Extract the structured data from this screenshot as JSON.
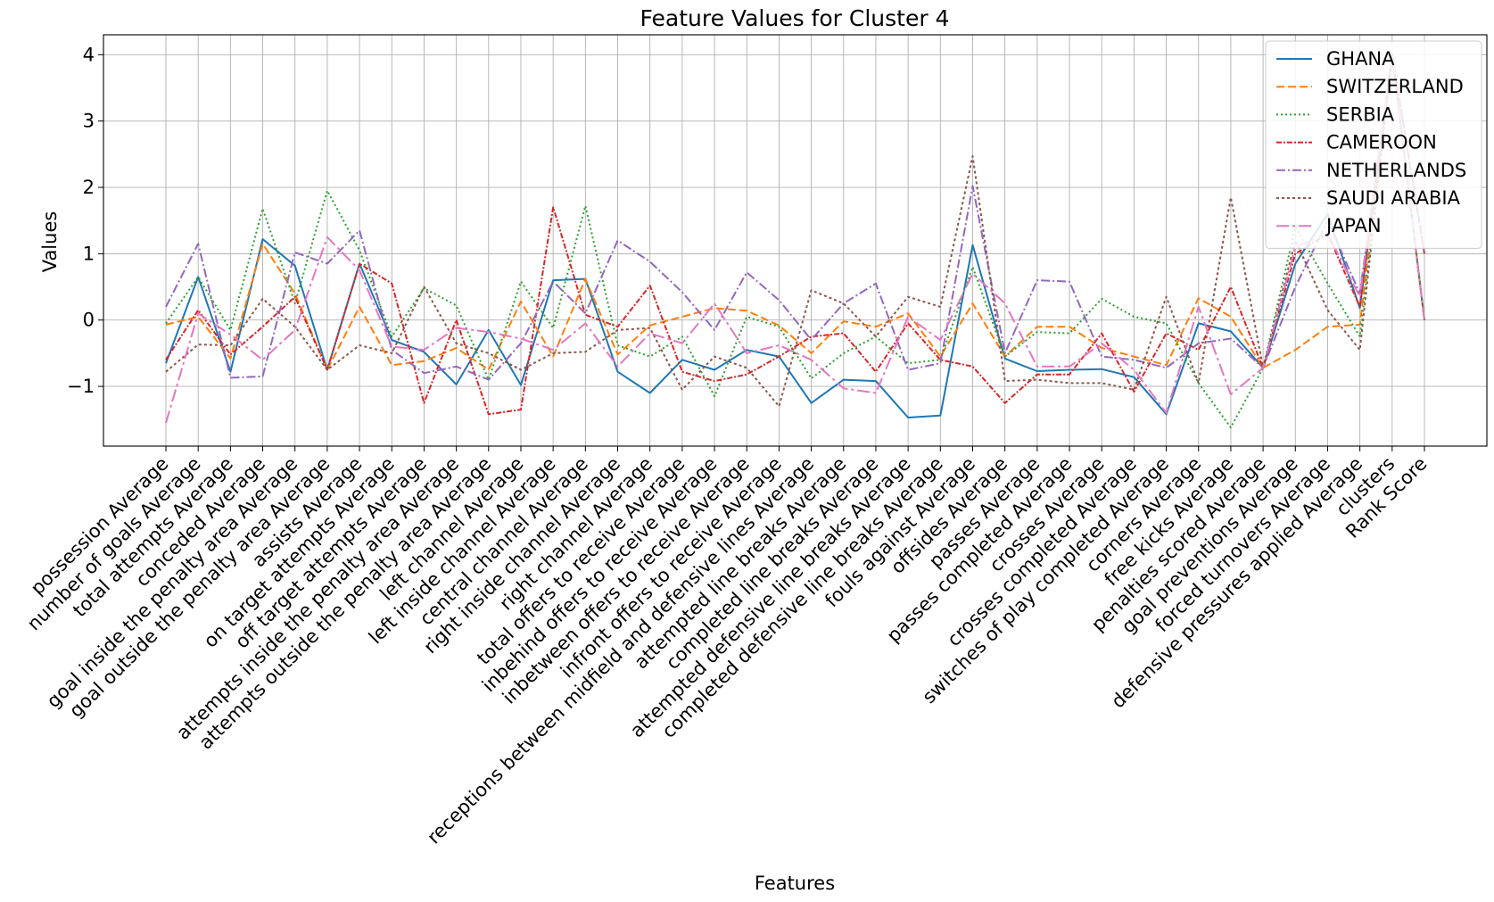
{
  "chart_data": {
    "type": "line",
    "title": "Feature Values for Cluster 4",
    "xlabel": "Features",
    "ylabel": "Values",
    "ylim": [
      -1.9,
      4.3
    ],
    "yticks": [
      -1,
      0,
      1,
      2,
      3,
      4
    ],
    "grid": true,
    "legend_position": "top-right",
    "categories": [
      "possession Average",
      "number of goals Average",
      "total attempts Average",
      "conceded Average",
      "goal inside the penalty area Average",
      "goal outside the penalty area Average",
      "assists Average",
      "on target attempts Average",
      "off target attempts Average",
      "attempts inside the penalty area  Average",
      "attempts outside the penalty area  Average",
      "left channel Average",
      "left inside channel Average",
      "central channel Average",
      "right inside channel Average",
      "right channel Average",
      "total offers to receive Average",
      "inbehind offers to receive Average",
      "inbetween offers to receive Average",
      "infront offers to receive Average",
      "receptions between midfield and defensive lines Average",
      "attempted line breaks Average",
      "completed line breaks Average",
      "attempted defensive line breaks Average",
      "completed defensive line breaks Average",
      "fouls against Average",
      "offsides Average",
      "passes Average",
      "passes completed Average",
      "crosses Average",
      "crosses completed Average",
      "switches of play completed Average",
      "corners Average",
      "free kicks Average",
      "penalties scored Average",
      "goal preventions Average",
      "forced turnovers Average",
      "defensive pressures applied Average",
      "clusters",
      "Rank Score"
    ],
    "series": [
      {
        "name": "GHANA",
        "color": "#1f77b4",
        "dash": "solid",
        "values": [
          -0.65,
          0.65,
          -0.78,
          1.22,
          0.82,
          -0.75,
          0.85,
          -0.3,
          -0.48,
          -0.97,
          -0.15,
          -0.98,
          0.6,
          0.62,
          -0.78,
          -1.1,
          -0.6,
          -0.75,
          -0.45,
          -0.55,
          -1.25,
          -0.9,
          -0.92,
          -1.47,
          -1.44,
          1.13,
          -0.58,
          -0.77,
          -0.75,
          -0.74,
          -0.86,
          -1.42,
          -0.05,
          -0.17,
          -0.72,
          0.85,
          1.6,
          0.18,
          4.0,
          0.0
        ]
      },
      {
        "name": "SWITZERLAND",
        "color": "#ff7f0e",
        "dash": "dashed",
        "values": [
          -0.07,
          0.05,
          -0.58,
          1.15,
          0.4,
          -0.75,
          0.2,
          -0.68,
          -0.62,
          -0.42,
          -0.75,
          0.28,
          -0.55,
          0.62,
          -0.52,
          -0.08,
          0.05,
          0.18,
          0.14,
          -0.08,
          -0.5,
          -0.02,
          -0.1,
          0.1,
          -0.55,
          0.25,
          -0.55,
          -0.1,
          -0.1,
          -0.42,
          -0.55,
          -0.68,
          0.33,
          0.05,
          -0.72,
          -0.45,
          -0.1,
          -0.07,
          4.0,
          0.0
        ]
      },
      {
        "name": "SERBIA",
        "color": "#2ca02c",
        "dash": "dotted",
        "values": [
          -0.05,
          0.65,
          -0.15,
          1.68,
          0.25,
          1.95,
          1.05,
          -0.25,
          0.48,
          0.22,
          -0.9,
          0.58,
          -0.12,
          1.72,
          -0.38,
          -0.55,
          -0.25,
          -1.15,
          0.05,
          -0.1,
          -0.88,
          -0.5,
          -0.25,
          -0.65,
          -0.6,
          0.8,
          -0.55,
          -0.18,
          -0.2,
          0.32,
          0.05,
          -0.05,
          -0.95,
          -1.62,
          -0.72,
          1.4,
          0.55,
          -0.25,
          4.0,
          0.0
        ]
      },
      {
        "name": "CAMEROON",
        "color": "#d62728",
        "dash": "dashdot",
        "values": [
          -0.6,
          0.15,
          -0.52,
          -0.1,
          0.35,
          -0.75,
          0.85,
          0.55,
          -1.25,
          0.0,
          -1.42,
          -1.35,
          1.7,
          0.08,
          -0.1,
          0.52,
          -0.78,
          -0.92,
          -0.82,
          -0.55,
          -0.25,
          -0.2,
          -0.78,
          -0.05,
          -0.6,
          -0.7,
          -1.25,
          -0.82,
          -0.82,
          -0.2,
          -1.08,
          -0.2,
          -0.45,
          0.5,
          -0.72,
          1.0,
          1.3,
          0.2,
          4.0,
          1.0
        ]
      },
      {
        "name": "NETHERLANDS",
        "color": "#9467bd",
        "dash": "dashdot2",
        "values": [
          0.2,
          1.15,
          -0.87,
          -0.85,
          1.02,
          0.85,
          1.35,
          -0.45,
          -0.8,
          -0.7,
          -0.9,
          -0.35,
          0.58,
          0.1,
          1.2,
          0.88,
          0.42,
          -0.15,
          0.72,
          0.3,
          -0.3,
          0.25,
          0.55,
          -0.75,
          -0.65,
          2.02,
          -0.5,
          0.6,
          0.58,
          -0.55,
          -0.6,
          -0.72,
          -0.35,
          -0.28,
          -0.72,
          0.5,
          1.5,
          0.4,
          4.0,
          1.0
        ]
      },
      {
        "name": "SAUDI ARABIA",
        "color": "#8c564b",
        "dash": "loosedot",
        "values": [
          -0.78,
          -0.37,
          -0.38,
          0.32,
          -0.1,
          -0.75,
          -0.38,
          -0.5,
          0.5,
          -0.35,
          -0.5,
          -0.75,
          -0.5,
          -0.48,
          -0.15,
          -0.12,
          -1.05,
          -0.55,
          -0.72,
          -1.3,
          0.45,
          0.25,
          -0.25,
          0.35,
          0.2,
          2.47,
          -0.92,
          -0.9,
          -0.95,
          -0.95,
          -1.05,
          0.35,
          -0.95,
          1.85,
          -0.72,
          1.2,
          0.15,
          -0.45,
          4.0,
          0.0
        ]
      },
      {
        "name": "JAPAN",
        "color": "#e377c2",
        "dash": "longdash",
        "values": [
          -1.55,
          0.1,
          -0.22,
          -0.6,
          -0.15,
          1.25,
          0.75,
          -0.4,
          -0.45,
          -0.12,
          -0.18,
          -0.28,
          -0.45,
          -0.05,
          -0.7,
          -0.2,
          -0.35,
          0.25,
          -0.5,
          -0.38,
          -0.6,
          -1.03,
          -1.1,
          0.05,
          -0.3,
          0.7,
          0.25,
          -0.7,
          -0.7,
          -0.35,
          -0.75,
          -1.4,
          0.2,
          -1.12,
          -0.72,
          1.1,
          1.3,
          0.35,
          4.0,
          0.0
        ]
      }
    ]
  }
}
